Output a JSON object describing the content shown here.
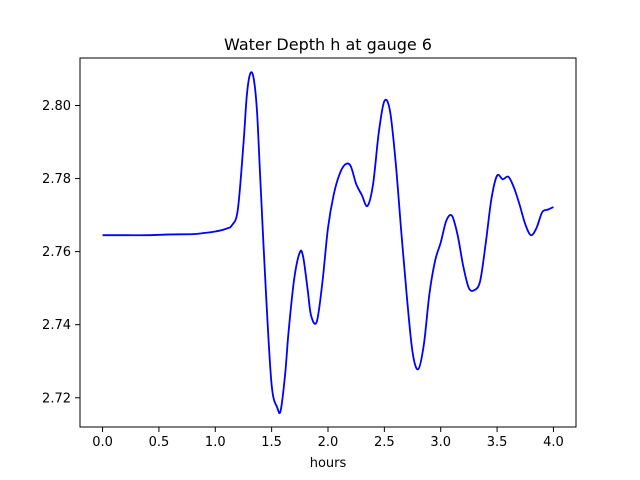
{
  "chart_data": {
    "type": "line",
    "title": "Water Depth h at gauge 6",
    "xlabel": "hours",
    "ylabel": "",
    "xlim": [
      -0.2,
      4.2
    ],
    "ylim": [
      2.712,
      2.813
    ],
    "xticks": [
      0.0,
      0.5,
      1.0,
      1.5,
      2.0,
      2.5,
      3.0,
      3.5,
      4.0
    ],
    "xtick_labels": [
      "0.0",
      "0.5",
      "1.0",
      "1.5",
      "2.0",
      "2.5",
      "3.0",
      "3.5",
      "4.0"
    ],
    "yticks": [
      2.72,
      2.74,
      2.76,
      2.78,
      2.8
    ],
    "ytick_labels": [
      "2.72",
      "2.74",
      "2.76",
      "2.78",
      "2.80"
    ],
    "grid": false,
    "series": [
      {
        "color": "#0000ff",
        "x": [
          0.0,
          0.2,
          0.4,
          0.6,
          0.8,
          0.9,
          1.0,
          1.1,
          1.15,
          1.2,
          1.25,
          1.28,
          1.31,
          1.34,
          1.37,
          1.4,
          1.45,
          1.5,
          1.55,
          1.58,
          1.62,
          1.65,
          1.7,
          1.75,
          1.78,
          1.82,
          1.85,
          1.9,
          1.95,
          2.0,
          2.05,
          2.1,
          2.15,
          2.2,
          2.25,
          2.3,
          2.35,
          2.4,
          2.45,
          2.5,
          2.55,
          2.6,
          2.65,
          2.7,
          2.75,
          2.8,
          2.85,
          2.9,
          2.95,
          3.0,
          3.05,
          3.1,
          3.15,
          3.2,
          3.25,
          3.3,
          3.35,
          3.4,
          3.45,
          3.5,
          3.55,
          3.6,
          3.65,
          3.7,
          3.75,
          3.8,
          3.85,
          3.9,
          3.95,
          4.0
        ],
        "y": [
          2.7645,
          2.7645,
          2.7645,
          2.7647,
          2.7648,
          2.7651,
          2.7655,
          2.7663,
          2.7673,
          2.7715,
          2.7895,
          2.8028,
          2.8087,
          2.8075,
          2.7985,
          2.7795,
          2.7485,
          2.7235,
          2.7173,
          2.7165,
          2.7265,
          2.738,
          2.7525,
          2.7598,
          2.7585,
          2.7495,
          2.7425,
          2.7408,
          2.7515,
          2.7665,
          2.7755,
          2.781,
          2.7838,
          2.7835,
          2.7785,
          2.7755,
          2.7725,
          2.7785,
          2.7925,
          2.8012,
          2.7985,
          2.7845,
          2.7655,
          2.7475,
          2.7325,
          2.7278,
          2.7345,
          2.7485,
          2.7575,
          2.7625,
          2.7685,
          2.7698,
          2.7645,
          2.756,
          2.75,
          2.7495,
          2.752,
          2.7625,
          2.7745,
          2.7808,
          2.7798,
          2.7805,
          2.7775,
          2.7728,
          2.7675,
          2.7645,
          2.7665,
          2.7708,
          2.7715,
          2.7722
        ]
      }
    ]
  }
}
